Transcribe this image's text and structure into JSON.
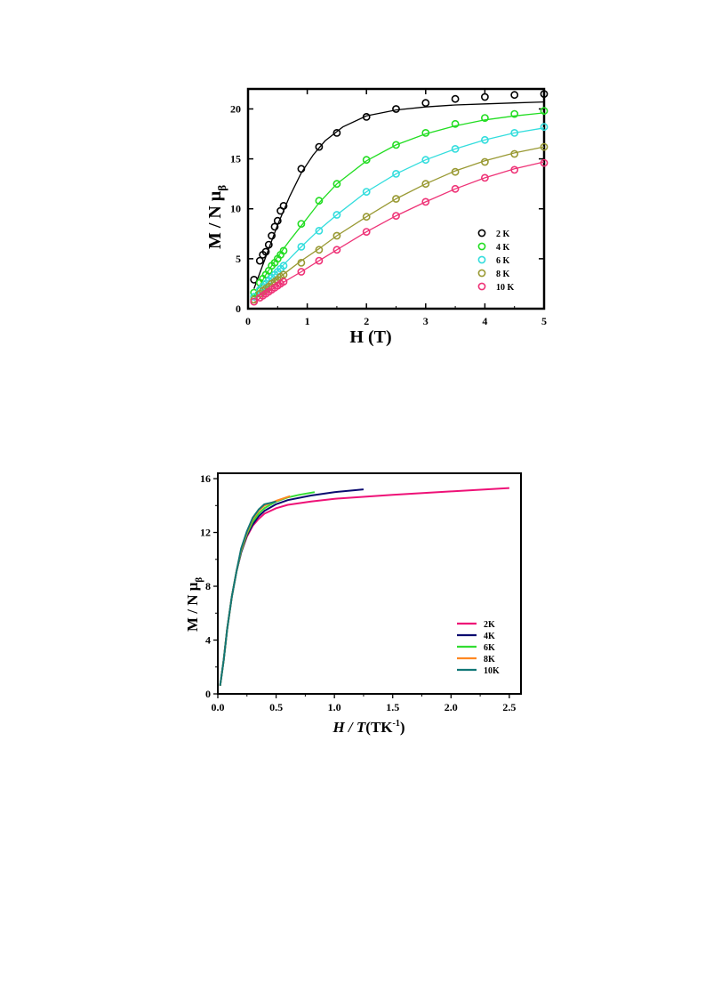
{
  "chart_data": [
    {
      "type": "scatter",
      "xlabel": "H (T)",
      "ylabel_main": "M / N μ",
      "ylabel_sub": "β",
      "xlim": [
        0,
        5
      ],
      "ylim": [
        0,
        22
      ],
      "xticks": [
        "0",
        "1",
        "2",
        "3",
        "4",
        "5"
      ],
      "yticks": [
        "0",
        "5",
        "10",
        "15",
        "20"
      ],
      "legend_position": "bottom-right",
      "grid": false,
      "series": [
        {
          "name": "2 K",
          "color": "#000000",
          "points": [
            [
              0.1,
              2.9
            ],
            [
              0.2,
              4.8
            ],
            [
              0.25,
              5.4
            ],
            [
              0.3,
              5.7
            ],
            [
              0.35,
              6.4
            ],
            [
              0.4,
              7.3
            ],
            [
              0.45,
              8.2
            ],
            [
              0.5,
              8.8
            ],
            [
              0.55,
              9.8
            ],
            [
              0.6,
              10.3
            ],
            [
              0.9,
              14.0
            ],
            [
              1.2,
              16.2
            ],
            [
              1.5,
              17.6
            ],
            [
              2.0,
              19.2
            ],
            [
              2.5,
              20.0
            ],
            [
              3.0,
              20.6
            ],
            [
              3.5,
              21.0
            ],
            [
              4.0,
              21.2
            ],
            [
              4.5,
              21.4
            ],
            [
              5.0,
              21.5
            ]
          ],
          "fit": [
            [
              0.1,
              2.0
            ],
            [
              0.3,
              5.2
            ],
            [
              0.5,
              8.4
            ],
            [
              0.7,
              11.2
            ],
            [
              0.9,
              13.6
            ],
            [
              1.1,
              15.4
            ],
            [
              1.3,
              16.8
            ],
            [
              1.6,
              18.2
            ],
            [
              2.0,
              19.3
            ],
            [
              2.5,
              19.9
            ],
            [
              3.0,
              20.2
            ],
            [
              3.5,
              20.4
            ],
            [
              4.0,
              20.5
            ],
            [
              4.5,
              20.6
            ],
            [
              5.0,
              20.7
            ]
          ]
        },
        {
          "name": "4 K",
          "color": "#22dd22",
          "points": [
            [
              0.1,
              1.6
            ],
            [
              0.2,
              2.6
            ],
            [
              0.25,
              3.0
            ],
            [
              0.3,
              3.4
            ],
            [
              0.35,
              3.8
            ],
            [
              0.4,
              4.3
            ],
            [
              0.45,
              4.6
            ],
            [
              0.5,
              5.0
            ],
            [
              0.55,
              5.4
            ],
            [
              0.6,
              5.8
            ],
            [
              0.9,
              8.5
            ],
            [
              1.2,
              10.8
            ],
            [
              1.5,
              12.5
            ],
            [
              2.0,
              14.9
            ],
            [
              2.5,
              16.4
            ],
            [
              3.0,
              17.6
            ],
            [
              3.5,
              18.5
            ],
            [
              4.0,
              19.1
            ],
            [
              4.5,
              19.5
            ],
            [
              5.0,
              19.8
            ]
          ],
          "fit": [
            [
              0.1,
              1.3
            ],
            [
              0.3,
              3.4
            ],
            [
              0.5,
              5.2
            ],
            [
              0.7,
              6.8
            ],
            [
              0.9,
              8.3
            ],
            [
              1.2,
              10.6
            ],
            [
              1.5,
              12.5
            ],
            [
              2.0,
              14.8
            ],
            [
              2.5,
              16.4
            ],
            [
              3.0,
              17.5
            ],
            [
              3.5,
              18.3
            ],
            [
              4.0,
              18.9
            ],
            [
              4.5,
              19.3
            ],
            [
              5.0,
              19.6
            ]
          ]
        },
        {
          "name": "6 K",
          "color": "#33dddd",
          "points": [
            [
              0.1,
              1.2
            ],
            [
              0.2,
              1.9
            ],
            [
              0.25,
              2.2
            ],
            [
              0.3,
              2.5
            ],
            [
              0.35,
              2.8
            ],
            [
              0.4,
              3.1
            ],
            [
              0.45,
              3.4
            ],
            [
              0.5,
              3.7
            ],
            [
              0.55,
              4.0
            ],
            [
              0.6,
              4.3
            ],
            [
              0.9,
              6.2
            ],
            [
              1.2,
              7.8
            ],
            [
              1.5,
              9.4
            ],
            [
              2.0,
              11.7
            ],
            [
              2.5,
              13.5
            ],
            [
              3.0,
              14.9
            ],
            [
              3.5,
              16.0
            ],
            [
              4.0,
              16.9
            ],
            [
              4.5,
              17.6
            ],
            [
              5.0,
              18.2
            ]
          ],
          "fit": [
            [
              0.1,
              1.0
            ],
            [
              0.3,
              2.5
            ],
            [
              0.5,
              3.8
            ],
            [
              0.7,
              5.0
            ],
            [
              0.9,
              6.2
            ],
            [
              1.2,
              7.9
            ],
            [
              1.5,
              9.4
            ],
            [
              2.0,
              11.7
            ],
            [
              2.5,
              13.5
            ],
            [
              3.0,
              14.9
            ],
            [
              3.5,
              16.0
            ],
            [
              4.0,
              16.9
            ],
            [
              4.5,
              17.6
            ],
            [
              5.0,
              18.1
            ]
          ]
        },
        {
          "name": "8 K",
          "color": "#999933",
          "points": [
            [
              0.1,
              0.9
            ],
            [
              0.2,
              1.5
            ],
            [
              0.25,
              1.8
            ],
            [
              0.3,
              2.0
            ],
            [
              0.35,
              2.2
            ],
            [
              0.4,
              2.5
            ],
            [
              0.45,
              2.7
            ],
            [
              0.5,
              2.9
            ],
            [
              0.55,
              3.2
            ],
            [
              0.6,
              3.4
            ],
            [
              0.9,
              4.6
            ],
            [
              1.2,
              5.9
            ],
            [
              1.5,
              7.3
            ],
            [
              2.0,
              9.2
            ],
            [
              2.5,
              11.0
            ],
            [
              3.0,
              12.5
            ],
            [
              3.5,
              13.7
            ],
            [
              4.0,
              14.7
            ],
            [
              4.5,
              15.5
            ],
            [
              5.0,
              16.2
            ]
          ],
          "fit": [
            [
              0.1,
              0.8
            ],
            [
              0.3,
              2.0
            ],
            [
              0.5,
              3.0
            ],
            [
              0.7,
              3.9
            ],
            [
              0.9,
              4.8
            ],
            [
              1.2,
              6.0
            ],
            [
              1.5,
              7.3
            ],
            [
              2.0,
              9.2
            ],
            [
              2.5,
              11.0
            ],
            [
              3.0,
              12.5
            ],
            [
              3.5,
              13.8
            ],
            [
              4.0,
              14.8
            ],
            [
              4.5,
              15.6
            ],
            [
              5.0,
              16.2
            ]
          ]
        },
        {
          "name": "10 K",
          "color": "#ee3377",
          "points": [
            [
              0.1,
              0.7
            ],
            [
              0.2,
              1.1
            ],
            [
              0.25,
              1.3
            ],
            [
              0.3,
              1.5
            ],
            [
              0.35,
              1.7
            ],
            [
              0.4,
              1.9
            ],
            [
              0.45,
              2.1
            ],
            [
              0.5,
              2.3
            ],
            [
              0.55,
              2.5
            ],
            [
              0.6,
              2.7
            ],
            [
              0.9,
              3.7
            ],
            [
              1.2,
              4.8
            ],
            [
              1.5,
              5.9
            ],
            [
              2.0,
              7.7
            ],
            [
              2.5,
              9.3
            ],
            [
              3.0,
              10.7
            ],
            [
              3.5,
              12.0
            ],
            [
              4.0,
              13.1
            ],
            [
              4.5,
              13.9
            ],
            [
              5.0,
              14.6
            ]
          ],
          "fit": [
            [
              0.1,
              0.6
            ],
            [
              0.3,
              1.5
            ],
            [
              0.5,
              2.3
            ],
            [
              0.7,
              3.0
            ],
            [
              0.9,
              3.7
            ],
            [
              1.2,
              4.8
            ],
            [
              1.5,
              5.9
            ],
            [
              2.0,
              7.7
            ],
            [
              2.5,
              9.3
            ],
            [
              3.0,
              10.7
            ],
            [
              3.5,
              12.0
            ],
            [
              4.0,
              13.1
            ],
            [
              4.5,
              14.0
            ],
            [
              5.0,
              14.7
            ]
          ]
        }
      ]
    },
    {
      "type": "line",
      "xlabel_italic": "H / T",
      "xlabel_unit": "(TK",
      "xlabel_exp": "-1",
      "xlabel_close": ")",
      "ylabel_main": "M / N μ",
      "ylabel_sub": "β",
      "xlim": [
        0,
        2.6
      ],
      "ylim": [
        0,
        16.4
      ],
      "xticks": [
        "0.0",
        "0.5",
        "1.0",
        "1.5",
        "2.0",
        "2.5"
      ],
      "xtick_values": [
        0,
        0.5,
        1.0,
        1.5,
        2.0,
        2.5
      ],
      "yticks": [
        "0",
        "4",
        "8",
        "12",
        "16"
      ],
      "ytick_values": [
        0,
        4,
        8,
        12,
        16
      ],
      "legend_position": "bottom-right",
      "grid": false,
      "series": [
        {
          "name": "2K",
          "color": "#ee1177",
          "points": [
            [
              0.02,
              0.6
            ],
            [
              0.05,
              2.5
            ],
            [
              0.08,
              4.8
            ],
            [
              0.12,
              7.2
            ],
            [
              0.16,
              9.1
            ],
            [
              0.2,
              10.5
            ],
            [
              0.25,
              11.7
            ],
            [
              0.3,
              12.5
            ],
            [
              0.35,
              13.0
            ],
            [
              0.4,
              13.4
            ],
            [
              0.5,
              13.8
            ],
            [
              0.6,
              14.05
            ],
            [
              0.8,
              14.3
            ],
            [
              1.0,
              14.5
            ],
            [
              1.5,
              14.8
            ],
            [
              2.0,
              15.05
            ],
            [
              2.5,
              15.3
            ]
          ]
        },
        {
          "name": "4K",
          "color": "#0b0b70",
          "points": [
            [
              0.02,
              0.6
            ],
            [
              0.05,
              2.5
            ],
            [
              0.08,
              4.8
            ],
            [
              0.12,
              7.2
            ],
            [
              0.16,
              9.1
            ],
            [
              0.2,
              10.5
            ],
            [
              0.25,
              11.8
            ],
            [
              0.3,
              12.6
            ],
            [
              0.35,
              13.2
            ],
            [
              0.4,
              13.6
            ],
            [
              0.5,
              14.1
            ],
            [
              0.6,
              14.4
            ],
            [
              0.8,
              14.75
            ],
            [
              1.0,
              15.0
            ],
            [
              1.25,
              15.2
            ]
          ]
        },
        {
          "name": "6K",
          "color": "#33dd33",
          "points": [
            [
              0.02,
              0.6
            ],
            [
              0.05,
              2.5
            ],
            [
              0.08,
              4.8
            ],
            [
              0.12,
              7.2
            ],
            [
              0.16,
              9.1
            ],
            [
              0.2,
              10.6
            ],
            [
              0.25,
              11.9
            ],
            [
              0.3,
              12.8
            ],
            [
              0.35,
              13.4
            ],
            [
              0.4,
              13.8
            ],
            [
              0.5,
              14.3
            ],
            [
              0.6,
              14.6
            ],
            [
              0.7,
              14.8
            ],
            [
              0.83,
              15.0
            ]
          ]
        },
        {
          "name": "8K",
          "color": "#ff8822",
          "points": [
            [
              0.02,
              0.6
            ],
            [
              0.05,
              2.5
            ],
            [
              0.08,
              4.8
            ],
            [
              0.12,
              7.2
            ],
            [
              0.16,
              9.1
            ],
            [
              0.2,
              10.7
            ],
            [
              0.25,
              12.0
            ],
            [
              0.3,
              13.0
            ],
            [
              0.35,
              13.6
            ],
            [
              0.4,
              14.0
            ],
            [
              0.5,
              14.35
            ],
            [
              0.62,
              14.7
            ]
          ]
        },
        {
          "name": "10K",
          "color": "#117777",
          "points": [
            [
              0.02,
              0.6
            ],
            [
              0.05,
              2.5
            ],
            [
              0.08,
              4.8
            ],
            [
              0.12,
              7.2
            ],
            [
              0.16,
              9.1
            ],
            [
              0.2,
              10.8
            ],
            [
              0.25,
              12.1
            ],
            [
              0.3,
              13.1
            ],
            [
              0.35,
              13.7
            ],
            [
              0.4,
              14.1
            ],
            [
              0.5,
              14.3
            ]
          ]
        }
      ]
    }
  ]
}
